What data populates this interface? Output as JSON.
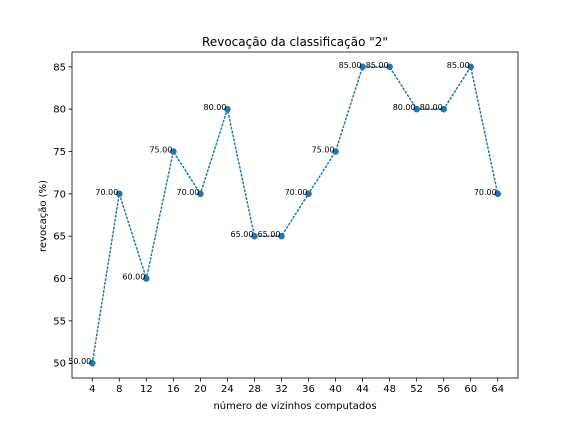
{
  "chart_data": {
    "type": "line",
    "title": "Revocação da classificação \"2\"",
    "xlabel": "número de vizinhos computados",
    "ylabel": "revocação (%)",
    "x": [
      4,
      8,
      12,
      16,
      20,
      24,
      28,
      32,
      36,
      40,
      44,
      48,
      52,
      56,
      60,
      64
    ],
    "x_ticks": [
      "4",
      "8",
      "12",
      "16",
      "20",
      "24",
      "28",
      "32",
      "36",
      "40",
      "44",
      "48",
      "52",
      "56",
      "60",
      "64"
    ],
    "y": [
      50.0,
      70.0,
      60.0,
      75.0,
      70.0,
      80.0,
      65.0,
      65.0,
      70.0,
      75.0,
      85.0,
      85.0,
      80.0,
      80.0,
      85.0,
      70.0
    ],
    "data_labels": [
      "50.00",
      "70.00",
      "60.00",
      "75.00",
      "70.00",
      "80.00",
      "65.00",
      "65.00",
      "70.00",
      "75.00",
      "85.00",
      "85.00",
      "80.00",
      "80.00",
      "85.00",
      "70.00"
    ],
    "y_ticks": [
      50,
      55,
      60,
      65,
      70,
      75,
      80,
      85
    ],
    "xlim": [
      1,
      67
    ],
    "ylim": [
      48.25,
      86.75
    ],
    "grid": false,
    "line_style": "dotted",
    "marker": "circle",
    "series_color": "#1f77b4"
  }
}
